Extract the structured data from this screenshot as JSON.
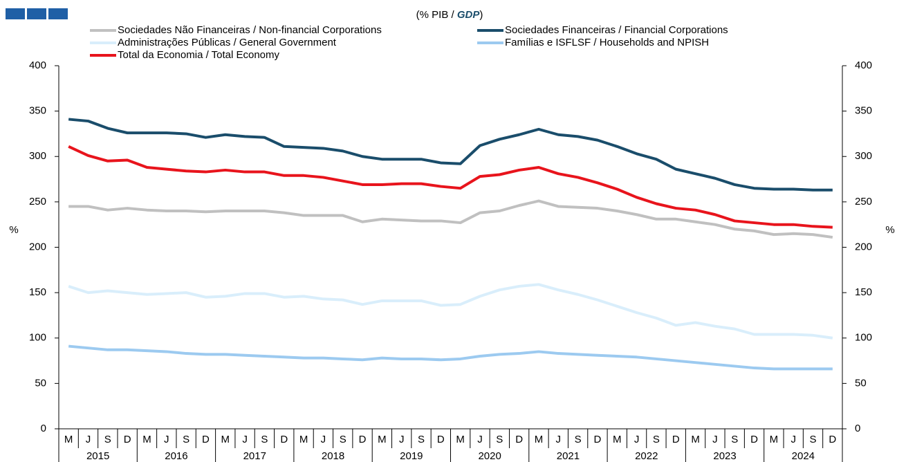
{
  "chart_data": {
    "type": "line",
    "subtitle": [
      "(% PIB / ",
      "GDP",
      ")"
    ],
    "ylabel": "%",
    "y2label": "%",
    "categories": [
      "M",
      "J",
      "S",
      "D",
      "M",
      "J",
      "S",
      "D",
      "M",
      "J",
      "S",
      "D",
      "M",
      "J",
      "S",
      "D",
      "M",
      "J",
      "S",
      "D",
      "M",
      "J",
      "S",
      "D",
      "M",
      "J",
      "S",
      "D",
      "M",
      "J",
      "S",
      "D",
      "M",
      "J",
      "S",
      "D",
      "M",
      "J",
      "S",
      "D"
    ],
    "years": [
      "2015",
      "2016",
      "2017",
      "2018",
      "2019",
      "2020",
      "2021",
      "2022",
      "2023",
      "2024"
    ],
    "ylim": [
      0,
      400
    ],
    "yticks": [
      0,
      50,
      100,
      150,
      200,
      250,
      300,
      350,
      400
    ],
    "y2lim": [
      0,
      400
    ],
    "y2ticks": [
      0,
      50,
      100,
      150,
      200,
      250,
      300,
      350,
      400
    ],
    "series": [
      {
        "name": "Sociedades Não Financeiras / Non-financial Corporations",
        "color": "#c0c0c0",
        "values": [
          245,
          245,
          241,
          243,
          241,
          240,
          240,
          239,
          240,
          240,
          240,
          238,
          235,
          235,
          235,
          228,
          231,
          230,
          229,
          229,
          227,
          238,
          240,
          246,
          251,
          245,
          244,
          243,
          240,
          236,
          231,
          231,
          228,
          225,
          220,
          218,
          214,
          215,
          214,
          211
        ]
      },
      {
        "name": "Sociedades Financeiras / Financial Corporations",
        "color": "#1a4d6b",
        "values": [
          341,
          339,
          331,
          326,
          326,
          326,
          325,
          321,
          324,
          322,
          321,
          311,
          310,
          309,
          306,
          300,
          297,
          297,
          297,
          293,
          292,
          312,
          319,
          324,
          330,
          324,
          322,
          318,
          311,
          303,
          297,
          286,
          281,
          276,
          269,
          265,
          264,
          264,
          263,
          263
        ]
      },
      {
        "name": "Administrações Públicas / General Government",
        "color": "#d9eefb",
        "values": [
          157,
          150,
          152,
          150,
          148,
          149,
          150,
          145,
          146,
          149,
          149,
          145,
          146,
          143,
          142,
          137,
          141,
          141,
          141,
          136,
          137,
          146,
          153,
          157,
          159,
          153,
          148,
          142,
          135,
          128,
          122,
          114,
          117,
          113,
          110,
          104,
          104,
          104,
          103,
          100
        ]
      },
      {
        "name": "Famílias e ISFLSF / Households and NPISH",
        "color": "#9ccaf0",
        "values": [
          91,
          89,
          87,
          87,
          86,
          85,
          83,
          82,
          82,
          81,
          80,
          79,
          78,
          78,
          77,
          76,
          78,
          77,
          77,
          76,
          77,
          80,
          82,
          83,
          85,
          83,
          82,
          81,
          80,
          79,
          77,
          75,
          73,
          71,
          69,
          67,
          66,
          66,
          66,
          66
        ]
      },
      {
        "name": "Total da Economia / Total Economy",
        "color": "#e8141c",
        "values": [
          311,
          301,
          295,
          296,
          288,
          286,
          284,
          283,
          285,
          283,
          283,
          279,
          279,
          277,
          273,
          269,
          269,
          270,
          270,
          267,
          265,
          278,
          280,
          285,
          288,
          281,
          277,
          271,
          264,
          255,
          248,
          243,
          241,
          236,
          229,
          227,
          225,
          225,
          223,
          222
        ]
      }
    ]
  }
}
